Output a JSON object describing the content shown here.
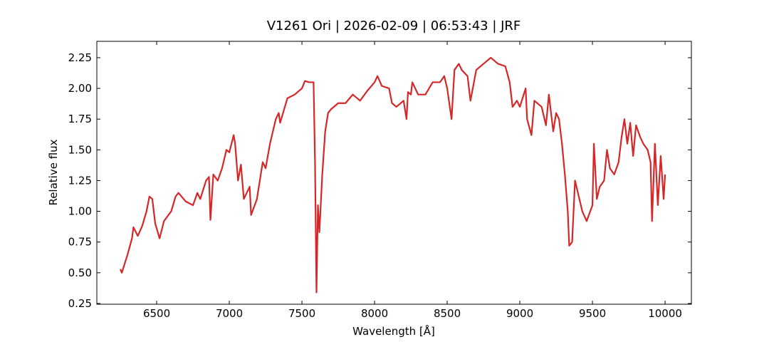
{
  "chart_data": {
    "type": "line",
    "title": "V1261 Ori | 2026-02-09 | 06:53:43 | JRF",
    "x_label": "Wavelength [Å]",
    "y_label": "Relative flux",
    "x": [
      6250,
      6260,
      6300,
      6330,
      6340,
      6370,
      6400,
      6430,
      6450,
      6470,
      6490,
      6520,
      6550,
      6600,
      6630,
      6650,
      6700,
      6750,
      6780,
      6800,
      6840,
      6860,
      6870,
      6890,
      6920,
      6950,
      6980,
      7000,
      7030,
      7040,
      7060,
      7080,
      7100,
      7140,
      7150,
      7190,
      7230,
      7250,
      7280,
      7300,
      7320,
      7340,
      7350,
      7400,
      7450,
      7500,
      7520,
      7550,
      7580,
      7590,
      7600,
      7610,
      7620,
      7640,
      7660,
      7680,
      7700,
      7750,
      7800,
      7850,
      7900,
      7950,
      8000,
      8020,
      8050,
      8100,
      8120,
      8150,
      8200,
      8220,
      8230,
      8250,
      8260,
      8300,
      8350,
      8400,
      8450,
      8480,
      8500,
      8530,
      8550,
      8580,
      8600,
      8640,
      8660,
      8700,
      8750,
      8800,
      8850,
      8900,
      8930,
      8950,
      8980,
      9000,
      9040,
      9050,
      9080,
      9100,
      9150,
      9180,
      9200,
      9230,
      9250,
      9270,
      9290,
      9310,
      9330,
      9340,
      9360,
      9380,
      9400,
      9430,
      9460,
      9500,
      9510,
      9530,
      9550,
      9580,
      9600,
      9620,
      9650,
      9680,
      9700,
      9720,
      9740,
      9760,
      9780,
      9800,
      9830,
      9850,
      9880,
      9900,
      9910,
      9930,
      9950,
      9970,
      9990,
      10000
    ],
    "series": [
      {
        "name": "V1261 Ori",
        "color": "#d62728",
        "values": [
          0.53,
          0.5,
          0.65,
          0.78,
          0.87,
          0.8,
          0.88,
          1.0,
          1.12,
          1.1,
          0.9,
          0.78,
          0.92,
          1.0,
          1.12,
          1.15,
          1.08,
          1.05,
          1.15,
          1.1,
          1.25,
          1.28,
          0.93,
          1.3,
          1.25,
          1.35,
          1.5,
          1.48,
          1.62,
          1.55,
          1.25,
          1.38,
          1.1,
          1.2,
          0.97,
          1.1,
          1.4,
          1.35,
          1.55,
          1.65,
          1.75,
          1.8,
          1.72,
          1.92,
          1.95,
          2.0,
          2.06,
          2.05,
          2.05,
          1.4,
          0.34,
          1.05,
          0.83,
          1.3,
          1.65,
          1.8,
          1.83,
          1.88,
          1.88,
          1.95,
          1.9,
          1.98,
          2.05,
          2.1,
          2.02,
          2.0,
          1.88,
          1.85,
          1.9,
          1.75,
          1.97,
          1.95,
          2.05,
          1.95,
          1.95,
          2.05,
          2.05,
          2.1,
          2.0,
          1.75,
          2.15,
          2.2,
          2.15,
          2.1,
          1.9,
          2.15,
          2.2,
          2.25,
          2.2,
          2.18,
          2.05,
          1.85,
          1.9,
          1.85,
          2.0,
          1.75,
          1.62,
          1.9,
          1.85,
          1.7,
          1.95,
          1.65,
          1.8,
          1.75,
          1.55,
          1.3,
          1.0,
          0.72,
          0.75,
          1.25,
          1.15,
          1.0,
          0.92,
          1.05,
          1.55,
          1.1,
          1.2,
          1.25,
          1.5,
          1.35,
          1.3,
          1.4,
          1.6,
          1.75,
          1.55,
          1.72,
          1.45,
          1.7,
          1.6,
          1.55,
          1.5,
          1.4,
          0.92,
          1.55,
          1.05,
          1.45,
          1.1,
          1.3
        ]
      }
    ],
    "xlim": [
      6088,
      10181
    ],
    "ylim": [
      0.244,
      2.383
    ],
    "xticks": [
      6500,
      7000,
      7500,
      8000,
      8500,
      9000,
      9500,
      10000
    ],
    "yticks": [
      0.25,
      {
        "value": 0.5,
        "label": "0.50"
      },
      0.75,
      {
        "value": 1.0,
        "label": "1.00"
      },
      1.25,
      {
        "value": 1.5,
        "label": "1.50"
      },
      1.75,
      {
        "value": 2.0,
        "label": "2.00"
      },
      2.25
    ]
  }
}
